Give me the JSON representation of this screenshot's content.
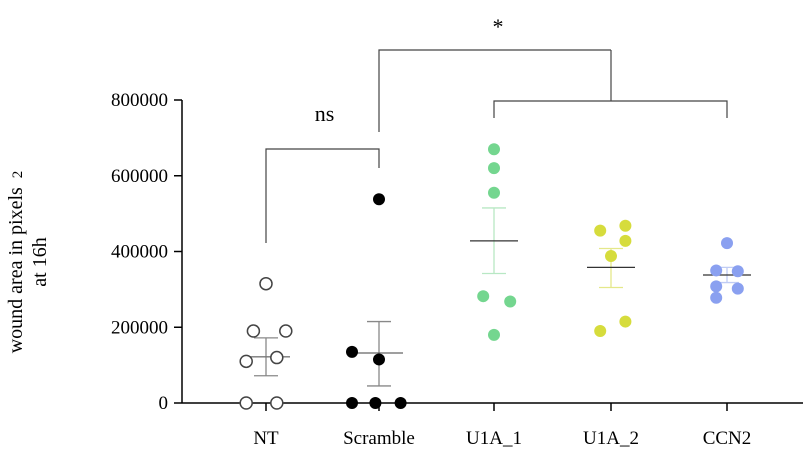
{
  "chart_data": {
    "type": "scatter",
    "ylabel_line1": "wound area in pixels",
    "ylabel_sup": "2",
    "ylabel_line2": "at 16h",
    "ylim": [
      0,
      800000
    ],
    "yticks": [
      0,
      200000,
      400000,
      600000,
      800000
    ],
    "ytick_labels": [
      "0",
      "200000",
      "400000",
      "600000",
      "800000"
    ],
    "categories": [
      "NT",
      "Scramble",
      "U1A_1",
      "U1A_2",
      "CCN2"
    ],
    "series": [
      {
        "category": "NT",
        "color": "#444444",
        "fill": "#ffffff",
        "open": true,
        "points": [
          [
            0,
            315000
          ],
          [
            -0.14,
            190000
          ],
          [
            0.22,
            190000
          ],
          [
            -0.22,
            110000
          ],
          [
            0.12,
            120000
          ],
          [
            -0.22,
            0
          ],
          [
            0.12,
            0
          ]
        ],
        "mean": 122000,
        "sem_low": 72000,
        "sem_high": 172000,
        "errcolor": "#888888"
      },
      {
        "category": "Scramble",
        "color": "#000000",
        "fill": "#000000",
        "open": false,
        "points": [
          [
            0,
            538000
          ],
          [
            -0.3,
            135000
          ],
          [
            0,
            115000
          ],
          [
            -0.3,
            0
          ],
          [
            -0.04,
            0
          ],
          [
            0.24,
            0
          ]
        ],
        "mean": 132000,
        "sem_low": 45000,
        "sem_high": 215000,
        "errcolor": "#888888"
      },
      {
        "category": "U1A_1",
        "color": "#74d68f",
        "fill": "#74d68f",
        "open": false,
        "points": [
          [
            0,
            670000
          ],
          [
            0,
            620000
          ],
          [
            0,
            555000
          ],
          [
            -0.12,
            282000
          ],
          [
            0.18,
            268000
          ],
          [
            0,
            180000
          ]
        ],
        "mean": 428000,
        "sem_low": 342000,
        "sem_high": 515000,
        "errcolor": "#b8e8c4"
      },
      {
        "category": "U1A_2",
        "color": "#d6dc3c",
        "fill": "#d6dc3c",
        "open": false,
        "points": [
          [
            -0.12,
            455000
          ],
          [
            0.16,
            468000
          ],
          [
            0.16,
            428000
          ],
          [
            0,
            388000
          ],
          [
            0.16,
            215000
          ],
          [
            -0.12,
            190000
          ]
        ],
        "mean": 358000,
        "sem_low": 305000,
        "sem_high": 408000,
        "errcolor": "#e4e88a"
      },
      {
        "category": "CCN2",
        "color": "#8aa0f0",
        "fill": "#8aa0f0",
        "open": false,
        "points": [
          [
            0,
            422000
          ],
          [
            -0.12,
            350000
          ],
          [
            0.12,
            348000
          ],
          [
            -0.12,
            308000
          ],
          [
            0.12,
            302000
          ],
          [
            -0.12,
            278000
          ]
        ],
        "mean": 338000,
        "sem_low": 318000,
        "sem_high": 358000,
        "errcolor": "#c0ccf4"
      }
    ],
    "annotations": [
      {
        "label": "ns",
        "from": "NT",
        "to": "Scramble"
      },
      {
        "label": "*",
        "from": "Scramble",
        "to": [
          "U1A_1",
          "U1A_2",
          "CCN2"
        ]
      }
    ]
  }
}
